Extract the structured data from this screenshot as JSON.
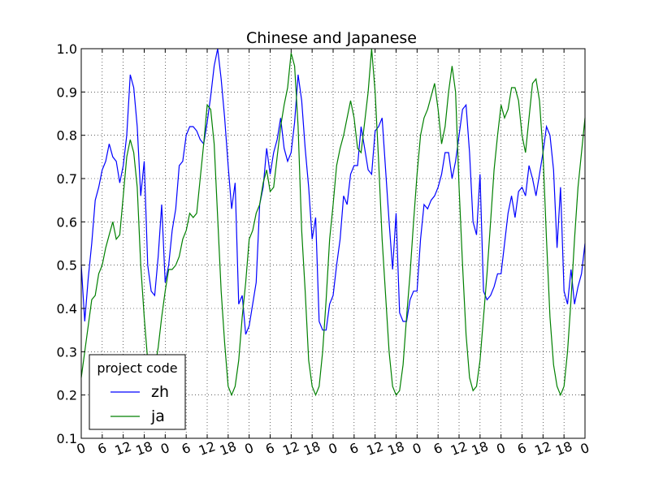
{
  "chart_data": {
    "type": "line",
    "title": "Chinese and Japanese",
    "xlabel": "",
    "ylabel": "",
    "xlim": [
      0,
      144
    ],
    "ylim": [
      0.1,
      1.0
    ],
    "yticks": [
      0.1,
      0.2,
      0.3,
      0.4,
      0.5,
      0.6,
      0.7,
      0.8,
      0.9,
      1.0
    ],
    "ytick_labels": [
      "0.1",
      "0.2",
      "0.3",
      "0.4",
      "0.5",
      "0.6",
      "0.7",
      "0.8",
      "0.9",
      "1.0"
    ],
    "xticks": [
      0,
      6,
      12,
      18,
      24,
      30,
      36,
      42,
      48,
      54,
      60,
      66,
      72,
      78,
      84,
      90,
      96,
      102,
      108,
      114,
      120,
      126,
      132,
      138,
      144
    ],
    "xtick_labels": [
      "0",
      "6",
      "12",
      "18",
      "0",
      "6",
      "12",
      "18",
      "0",
      "6",
      "12",
      "18",
      "0",
      "6",
      "12",
      "18",
      "0",
      "6",
      "12",
      "18",
      "0",
      "6",
      "12",
      "18",
      "0"
    ],
    "grid": true,
    "legend": {
      "title": "project code",
      "placement": "lower-left"
    },
    "series": [
      {
        "name": "zh",
        "color": "#0000ff",
        "x": [
          0,
          1,
          2,
          3,
          4,
          5,
          6,
          7,
          8,
          9,
          10,
          11,
          12,
          13,
          14,
          15,
          16,
          17,
          18,
          19,
          20,
          21,
          22,
          23,
          24,
          25,
          26,
          27,
          28,
          29,
          30,
          31,
          32,
          33,
          34,
          35,
          36,
          37,
          38,
          39,
          40,
          41,
          42,
          43,
          44,
          45,
          46,
          47,
          48,
          49,
          50,
          51,
          52,
          53,
          54,
          55,
          56,
          57,
          58,
          59,
          60,
          61,
          62,
          63,
          64,
          65,
          66,
          67,
          68,
          69,
          70,
          71,
          72,
          73,
          74,
          75,
          76,
          77,
          78,
          79,
          80,
          81,
          82,
          83,
          84,
          85,
          86,
          87,
          88,
          89,
          90,
          91,
          92,
          93,
          94,
          95,
          96,
          97,
          98,
          99,
          100,
          101,
          102,
          103,
          104,
          105,
          106,
          107,
          108,
          109,
          110,
          111,
          112,
          113,
          114,
          115,
          116,
          117,
          118,
          119,
          120,
          121,
          122,
          123,
          124,
          125,
          126,
          127,
          128,
          129,
          130,
          131,
          132,
          133,
          134,
          135,
          136,
          137,
          138,
          139,
          140,
          141,
          142,
          143,
          144
        ],
        "y": [
          0.5,
          0.37,
          0.47,
          0.55,
          0.65,
          0.68,
          0.72,
          0.74,
          0.78,
          0.75,
          0.74,
          0.69,
          0.73,
          0.8,
          0.94,
          0.91,
          0.82,
          0.66,
          0.74,
          0.5,
          0.44,
          0.43,
          0.52,
          0.64,
          0.46,
          0.5,
          0.58,
          0.63,
          0.73,
          0.74,
          0.8,
          0.82,
          0.82,
          0.81,
          0.79,
          0.78,
          0.83,
          0.89,
          0.96,
          1.0,
          0.93,
          0.84,
          0.73,
          0.63,
          0.69,
          0.41,
          0.43,
          0.34,
          0.36,
          0.41,
          0.46,
          0.64,
          0.68,
          0.77,
          0.71,
          0.76,
          0.79,
          0.84,
          0.77,
          0.74,
          0.76,
          0.83,
          0.94,
          0.88,
          0.77,
          0.68,
          0.56,
          0.61,
          0.37,
          0.35,
          0.35,
          0.41,
          0.43,
          0.5,
          0.56,
          0.66,
          0.64,
          0.71,
          0.73,
          0.73,
          0.82,
          0.77,
          0.72,
          0.71,
          0.81,
          0.82,
          0.84,
          0.72,
          0.6,
          0.49,
          0.62,
          0.39,
          0.37,
          0.37,
          0.42,
          0.44,
          0.44,
          0.56,
          0.64,
          0.63,
          0.65,
          0.66,
          0.68,
          0.71,
          0.76,
          0.76,
          0.7,
          0.74,
          0.8,
          0.86,
          0.87,
          0.76,
          0.6,
          0.57,
          0.71,
          0.44,
          0.42,
          0.43,
          0.45,
          0.48,
          0.48,
          0.55,
          0.62,
          0.66,
          0.61,
          0.67,
          0.68,
          0.66,
          0.73,
          0.7,
          0.66,
          0.71,
          0.76,
          0.82,
          0.8,
          0.72,
          0.54,
          0.68,
          0.44,
          0.41,
          0.49,
          0.41,
          0.45,
          0.48,
          0.55
        ]
      },
      {
        "name": "ja",
        "color": "#008000",
        "x": [
          0,
          1,
          2,
          3,
          4,
          5,
          6,
          7,
          8,
          9,
          10,
          11,
          12,
          13,
          14,
          15,
          16,
          17,
          18,
          19,
          20,
          21,
          22,
          23,
          24,
          25,
          26,
          27,
          28,
          29,
          30,
          31,
          32,
          33,
          34,
          35,
          36,
          37,
          38,
          39,
          40,
          41,
          42,
          43,
          44,
          45,
          46,
          47,
          48,
          49,
          50,
          51,
          52,
          53,
          54,
          55,
          56,
          57,
          58,
          59,
          60,
          61,
          62,
          63,
          64,
          65,
          66,
          67,
          68,
          69,
          70,
          71,
          72,
          73,
          74,
          75,
          76,
          77,
          78,
          79,
          80,
          81,
          82,
          83,
          84,
          85,
          86,
          87,
          88,
          89,
          90,
          91,
          92,
          93,
          94,
          95,
          96,
          97,
          98,
          99,
          100,
          101,
          102,
          103,
          104,
          105,
          106,
          107,
          108,
          109,
          110,
          111,
          112,
          113,
          114,
          115,
          116,
          117,
          118,
          119,
          120,
          121,
          122,
          123,
          124,
          125,
          126,
          127,
          128,
          129,
          130,
          131,
          132,
          133,
          134,
          135,
          136,
          137,
          138,
          139,
          140,
          141,
          142,
          143,
          144
        ],
        "y": [
          0.24,
          0.3,
          0.36,
          0.42,
          0.43,
          0.48,
          0.5,
          0.54,
          0.57,
          0.6,
          0.56,
          0.57,
          0.66,
          0.75,
          0.79,
          0.76,
          0.68,
          0.5,
          0.38,
          0.28,
          0.24,
          0.26,
          0.31,
          0.38,
          0.44,
          0.49,
          0.49,
          0.5,
          0.52,
          0.56,
          0.58,
          0.62,
          0.61,
          0.62,
          0.7,
          0.78,
          0.87,
          0.86,
          0.78,
          0.61,
          0.44,
          0.32,
          0.22,
          0.2,
          0.22,
          0.28,
          0.38,
          0.46,
          0.56,
          0.58,
          0.62,
          0.64,
          0.69,
          0.72,
          0.67,
          0.68,
          0.75,
          0.82,
          0.87,
          0.91,
          0.99,
          0.96,
          0.82,
          0.58,
          0.44,
          0.28,
          0.22,
          0.2,
          0.22,
          0.3,
          0.42,
          0.56,
          0.64,
          0.73,
          0.77,
          0.8,
          0.84,
          0.88,
          0.84,
          0.77,
          0.76,
          0.83,
          0.9,
          1.0,
          0.9,
          0.74,
          0.56,
          0.43,
          0.3,
          0.22,
          0.2,
          0.21,
          0.27,
          0.38,
          0.48,
          0.6,
          0.71,
          0.8,
          0.84,
          0.86,
          0.89,
          0.92,
          0.86,
          0.78,
          0.82,
          0.9,
          0.96,
          0.9,
          0.68,
          0.5,
          0.34,
          0.24,
          0.21,
          0.22,
          0.28,
          0.38,
          0.48,
          0.6,
          0.72,
          0.8,
          0.87,
          0.84,
          0.86,
          0.91,
          0.91,
          0.88,
          0.8,
          0.76,
          0.84,
          0.92,
          0.93,
          0.88,
          0.76,
          0.56,
          0.38,
          0.27,
          0.22,
          0.2,
          0.22,
          0.3,
          0.42,
          0.56,
          0.68,
          0.76,
          0.84
        ]
      }
    ]
  }
}
